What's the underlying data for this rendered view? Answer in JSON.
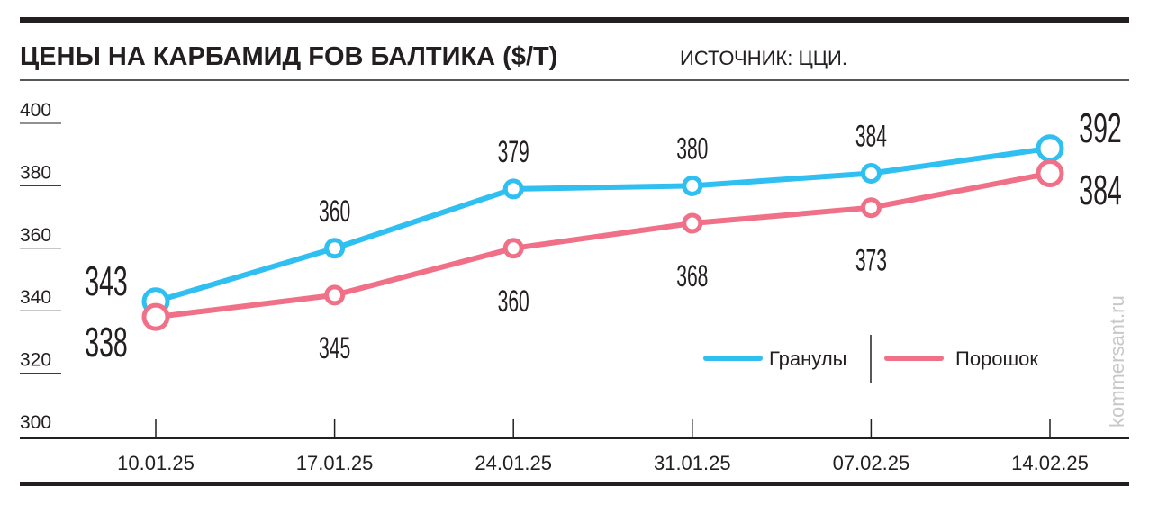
{
  "chart_data": {
    "type": "line",
    "title": "ЦЕНЫ НА КАРБАМИД FOB БАЛТИКА ($/T)",
    "subtitle": "ИСТОЧНИК: ЦЦИ.",
    "watermark": "kommersant.ru",
    "categories": [
      "10.01.25",
      "17.01.25",
      "24.01.25",
      "31.01.25",
      "07.02.25",
      "14.02.25"
    ],
    "series": [
      {
        "name": "Гранулы",
        "color": "#2fbff0",
        "values": [
          343,
          360,
          379,
          380,
          384,
          392
        ]
      },
      {
        "name": "Порошок",
        "color": "#f07088",
        "values": [
          338,
          345,
          360,
          368,
          373,
          384
        ]
      }
    ],
    "ylim": [
      300,
      400
    ],
    "yticks": [
      300,
      320,
      340,
      360,
      380,
      400
    ]
  }
}
